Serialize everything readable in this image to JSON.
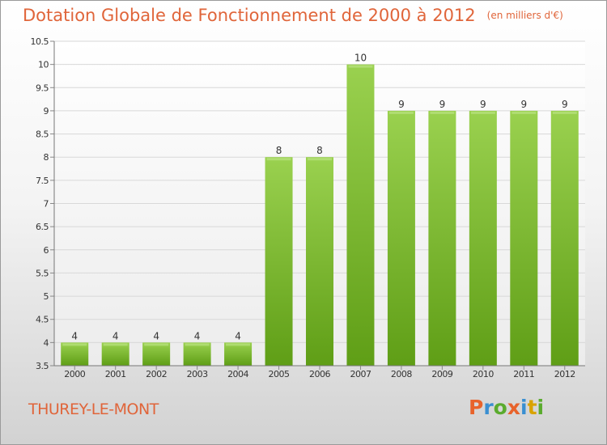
{
  "chart_data": {
    "type": "bar",
    "title": "Dotation Globale de Fonctionnement de 2000 à 2012",
    "subtitle": "(en milliers d'€)",
    "categories": [
      "2000",
      "2001",
      "2002",
      "2003",
      "2004",
      "2005",
      "2006",
      "2007",
      "2008",
      "2009",
      "2010",
      "2011",
      "2012"
    ],
    "values": [
      4,
      4,
      4,
      4,
      4,
      8,
      8,
      10,
      9,
      9,
      9,
      9,
      9
    ],
    "ylim": [
      3.5,
      10.5
    ],
    "yticks": [
      "3.5",
      "4",
      "4.5",
      "5",
      "5.5",
      "6",
      "6.5",
      "7",
      "7.5",
      "8",
      "8.5",
      "9",
      "9.5",
      "10",
      "10.5"
    ],
    "grid": true,
    "bar_color": "#7cb82f"
  },
  "footer": {
    "commune": "THUREY-LE-MONT",
    "logo": "Proxiti",
    "logo_colors": [
      "#e8632b",
      "#3a8fd1",
      "#5aab2e",
      "#e8632b",
      "#3a8fd1",
      "#d9a300",
      "#5aab2e"
    ]
  }
}
